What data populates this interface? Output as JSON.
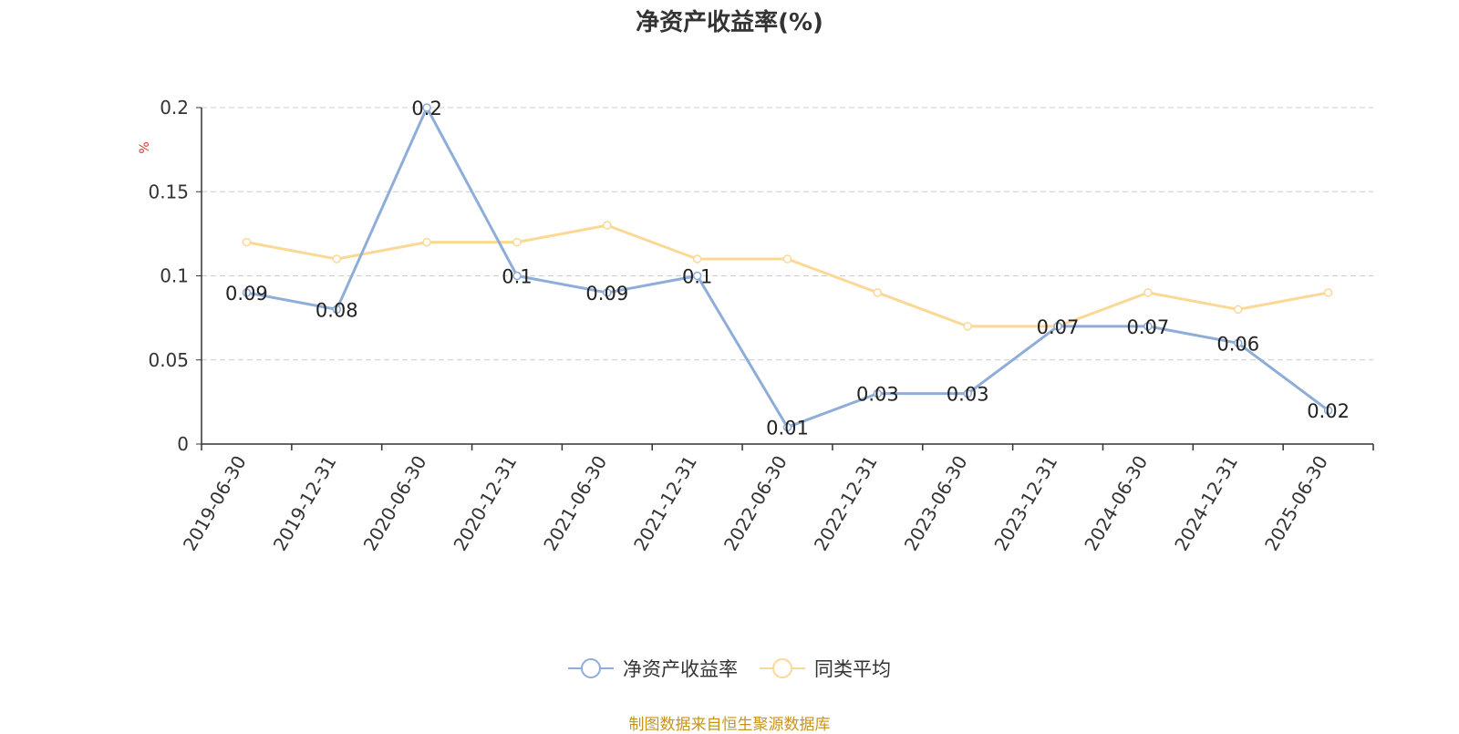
{
  "chart_data": {
    "type": "line",
    "title": "净资产收益率(%)",
    "ylabel": "%",
    "xlabel": "",
    "categories": [
      "2019-06-30",
      "2019-12-31",
      "2020-06-30",
      "2020-12-31",
      "2021-06-30",
      "2021-12-31",
      "2022-06-30",
      "2022-12-31",
      "2023-06-30",
      "2023-12-31",
      "2024-06-30",
      "2024-12-31",
      "2025-06-30"
    ],
    "yticks": [
      "0",
      "0.05",
      "0.1",
      "0.15",
      "0.2"
    ],
    "ylim": [
      0,
      0.2
    ],
    "grid": true,
    "legend_position": "bottom",
    "series": [
      {
        "name": "净资产收益率",
        "color": "#8eadd9",
        "values": [
          0.09,
          0.08,
          0.2,
          0.1,
          0.09,
          0.1,
          0.01,
          0.03,
          0.03,
          0.07,
          0.07,
          0.06,
          0.02
        ],
        "labels": [
          "0.09",
          "0.08",
          "0.2",
          "0.1",
          "0.09",
          "0.1",
          "0.01",
          "0.03",
          "0.03",
          "0.07",
          "0.07",
          "0.06",
          "0.02"
        ]
      },
      {
        "name": "同类平均",
        "color": "#fcd896",
        "values": [
          0.12,
          0.11,
          0.12,
          0.12,
          0.13,
          0.11,
          0.11,
          0.09,
          0.07,
          0.07,
          0.09,
          0.08,
          0.09
        ]
      }
    ]
  },
  "source_note": "制图数据来自恒生聚源数据库"
}
